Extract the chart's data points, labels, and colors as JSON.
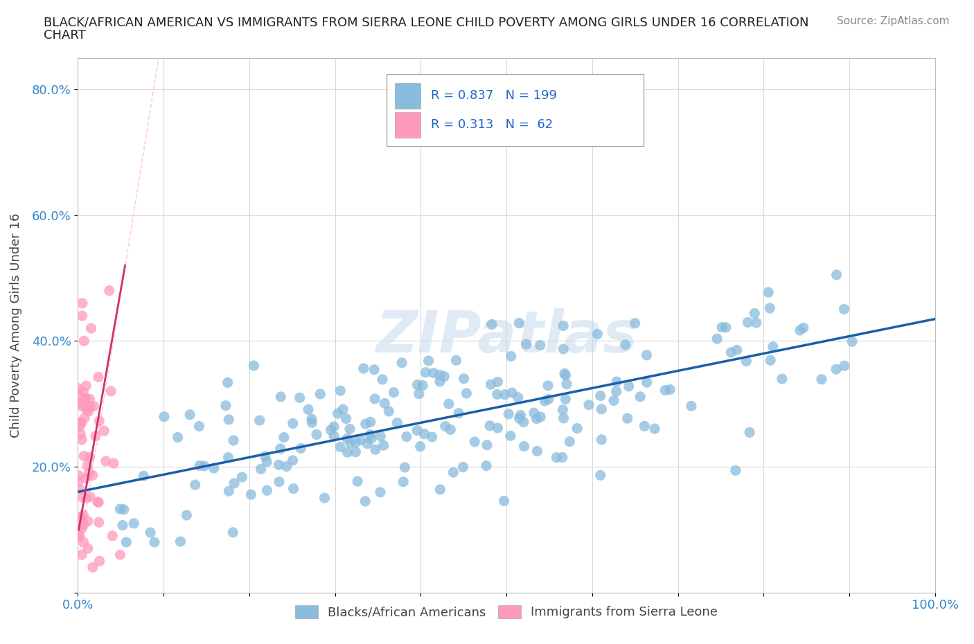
{
  "title_line1": "BLACK/AFRICAN AMERICAN VS IMMIGRANTS FROM SIERRA LEONE CHILD POVERTY AMONG GIRLS UNDER 16 CORRELATION",
  "title_line2": "CHART",
  "source": "Source: ZipAtlas.com",
  "ylabel": "Child Poverty Among Girls Under 16",
  "xlim": [
    0.0,
    1.0
  ],
  "ylim": [
    0.0,
    0.85
  ],
  "blue_R": 0.837,
  "blue_N": 199,
  "pink_R": 0.313,
  "pink_N": 62,
  "blue_color": "#88bbdd",
  "pink_color": "#ff99bb",
  "blue_line_color": "#1a5ea8",
  "pink_line_color": "#cc3366",
  "pink_dash_color": "#ffaabb",
  "watermark": "ZIPatlas",
  "legend_labels": [
    "Blacks/African Americans",
    "Immigrants from Sierra Leone"
  ],
  "x_ticks": [
    0.0,
    0.1,
    0.2,
    0.3,
    0.4,
    0.5,
    0.6,
    0.7,
    0.8,
    0.9,
    1.0
  ],
  "x_tick_labels": [
    "0.0%",
    "",
    "",
    "",
    "",
    "",
    "",
    "",
    "",
    "",
    "100.0%"
  ],
  "y_ticks": [
    0.0,
    0.2,
    0.4,
    0.6,
    0.8
  ],
  "y_tick_labels": [
    "",
    "20.0%",
    "40.0%",
    "60.0%",
    "80.0%"
  ]
}
